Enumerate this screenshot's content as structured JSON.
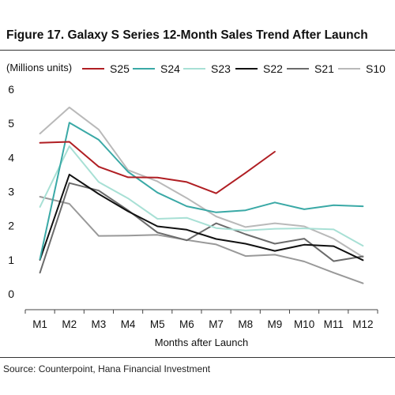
{
  "title": "Figure 17. Galaxy S Series 12-Month Sales Trend After Launch",
  "unit_label": "(Millions units)",
  "source": "Source: Counterpoint, Hana Financial Investment",
  "chart_data": {
    "type": "line",
    "title": "Figure 17. Galaxy S Series 12-Month Sales Trend After Launch",
    "xlabel": "Months after Launch",
    "ylabel": "(Millions units)",
    "categories": [
      "M1",
      "M2",
      "M3",
      "M4",
      "M5",
      "M6",
      "M7",
      "M8",
      "M9",
      "M10",
      "M11",
      "M12"
    ],
    "ylim": [
      0,
      6
    ],
    "yticks": [
      0,
      1,
      2,
      3,
      4,
      5,
      6
    ],
    "grid": false,
    "legend_position": "top",
    "series": [
      {
        "name": "S25",
        "color": "#b01e23",
        "values": [
          4.43,
          4.46,
          3.73,
          3.42,
          3.41,
          3.28,
          2.95,
          3.55,
          4.17,
          null,
          null,
          null
        ]
      },
      {
        "name": "S24",
        "color": "#3aa9a6",
        "values": [
          1.02,
          5.02,
          4.52,
          3.58,
          2.97,
          2.57,
          2.39,
          2.45,
          2.68,
          2.48,
          2.6,
          2.57
        ]
      },
      {
        "name": "S23",
        "color": "#a8e0d5",
        "values": [
          2.55,
          4.33,
          3.28,
          2.8,
          2.2,
          2.23,
          1.93,
          1.86,
          1.91,
          1.92,
          1.89,
          1.41
        ]
      },
      {
        "name": "S22",
        "color": "#111111",
        "values": [
          1.0,
          3.5,
          2.93,
          2.42,
          1.98,
          1.88,
          1.61,
          1.47,
          1.26,
          1.44,
          1.4,
          0.99
        ]
      },
      {
        "name": "S21",
        "color": "#6b6b6b",
        "values": [
          0.62,
          3.25,
          3.03,
          2.45,
          1.8,
          1.57,
          2.07,
          1.75,
          1.47,
          1.62,
          0.96,
          1.1
        ]
      },
      {
        "name": "S10",
        "color": "#b9b9b9",
        "values": [
          4.7,
          5.47,
          4.82,
          3.63,
          3.3,
          2.81,
          2.27,
          1.96,
          2.07,
          1.98,
          1.62,
          1.08
        ]
      },
      {
        "name": "",
        "color": "#999999",
        "values": [
          2.85,
          2.64,
          1.7,
          1.71,
          1.73,
          1.58,
          1.45,
          1.11,
          1.15,
          0.95,
          0.62,
          0.31
        ]
      }
    ]
  }
}
